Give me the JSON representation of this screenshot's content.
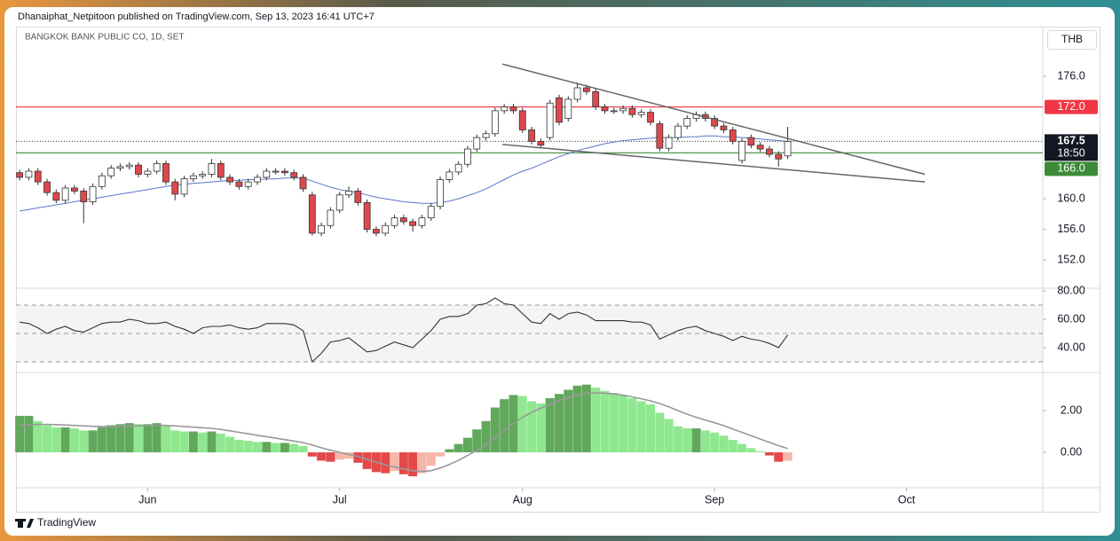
{
  "header": {
    "publisher": "Dhanaiphat_Netpitoon published on TradingView.com, Sep 13, 2023 16:41 UTC+7",
    "footer": "TradingView"
  },
  "chart_data": [
    {
      "type": "candlestick",
      "title": "BANGKOK BANK PUBLIC CO, 1D, SET",
      "currency": "THB",
      "xlim": [
        -0.4,
        111.9
      ],
      "xticks": [
        {
          "value": 14,
          "label": "Jun"
        },
        {
          "value": 35,
          "label": "Jul"
        },
        {
          "value": 55,
          "label": "Aug"
        },
        {
          "value": 76,
          "label": "Sep"
        },
        {
          "value": 97,
          "label": "Oct"
        }
      ],
      "ylim": [
        148.3,
        182.5
      ],
      "yticks": [
        {
          "value": 176,
          "label": "176.0"
        },
        {
          "value": 160,
          "label": "160.0"
        },
        {
          "value": 156,
          "label": "156.0"
        },
        {
          "value": 152,
          "label": "152.0"
        }
      ],
      "up_color": "#ffffff",
      "down_color": "#e0474c",
      "open": [
        163.4,
        162.8,
        163.6,
        162.2,
        160.8,
        159.8,
        161.4,
        161.0,
        159.6,
        161.6,
        163.0,
        164.0,
        164.2,
        164.4,
        163.2,
        163.6,
        164.6,
        162.2,
        160.6,
        162.6,
        163.0,
        163.2,
        164.6,
        162.8,
        162.2,
        161.6,
        162.2,
        162.8,
        163.6,
        163.6,
        163.4,
        162.8,
        160.5,
        155.5,
        156.5,
        158.5,
        160.5,
        161.0,
        159.5,
        156.0,
        155.5,
        156.5,
        157.5,
        157.0,
        156.5,
        157.5,
        159.0,
        162.5,
        163.5,
        164.5,
        166.5,
        168.0,
        168.5,
        171.5,
        172.0,
        171.5,
        169.0,
        167.5,
        168.0,
        173.2,
        170.5,
        173.0,
        174.5,
        174.0,
        172.0,
        171.5,
        171.5,
        171.8,
        171.0,
        171.3,
        169.8,
        166.6,
        168.0,
        169.5,
        170.5,
        171.0,
        170.5,
        169.5,
        169.0,
        165.0,
        168.0,
        167.0,
        166.5,
        165.8,
        165.6
      ],
      "high": [
        163.8,
        164.0,
        164.0,
        162.6,
        161.2,
        161.8,
        161.8,
        161.4,
        162.0,
        163.4,
        164.4,
        164.6,
        164.8,
        164.8,
        164.0,
        165.0,
        165.0,
        162.6,
        163.0,
        163.4,
        163.6,
        165.2,
        165.0,
        163.2,
        162.6,
        162.6,
        163.2,
        164.0,
        164.0,
        164.0,
        163.8,
        163.2,
        160.9,
        156.9,
        158.9,
        160.9,
        161.6,
        161.4,
        159.9,
        156.4,
        156.9,
        157.9,
        157.9,
        157.4,
        157.9,
        159.4,
        162.9,
        163.9,
        164.9,
        166.9,
        168.4,
        168.9,
        171.9,
        172.4,
        172.4,
        171.9,
        169.4,
        167.9,
        172.9,
        173.6,
        173.4,
        175.2,
        174.9,
        174.4,
        172.4,
        171.9,
        172.2,
        172.2,
        171.7,
        171.7,
        170.2,
        168.4,
        169.9,
        170.9,
        171.4,
        171.4,
        170.9,
        169.9,
        169.4,
        167.9,
        168.4,
        167.4,
        166.9,
        166.2,
        169.4
      ],
      "low": [
        162.4,
        162.4,
        161.8,
        160.4,
        159.4,
        159.4,
        160.6,
        156.8,
        159.2,
        161.2,
        162.6,
        163.6,
        163.8,
        162.8,
        162.8,
        163.2,
        161.8,
        159.8,
        160.2,
        162.2,
        162.6,
        162.8,
        162.4,
        161.8,
        161.2,
        161.2,
        161.8,
        162.4,
        163.2,
        163.0,
        162.4,
        160.9,
        155.2,
        155.1,
        156.1,
        158.1,
        160.1,
        159.1,
        155.6,
        155.1,
        155.1,
        156.1,
        156.6,
        155.7,
        156.1,
        157.1,
        158.6,
        162.1,
        163.1,
        164.1,
        166.1,
        167.6,
        168.1,
        171.1,
        171.1,
        168.6,
        167.1,
        166.6,
        167.6,
        169.6,
        170.1,
        172.6,
        173.6,
        171.6,
        171.1,
        171.1,
        171.1,
        170.6,
        170.6,
        169.6,
        166.2,
        166.2,
        167.6,
        169.1,
        170.1,
        170.1,
        169.1,
        168.6,
        167.1,
        164.6,
        166.6,
        166.1,
        165.4,
        164.2,
        165.2
      ],
      "close": [
        162.8,
        163.6,
        162.2,
        160.8,
        159.8,
        161.4,
        161.0,
        159.6,
        161.6,
        163.0,
        164.0,
        164.2,
        164.4,
        163.2,
        163.6,
        164.6,
        162.2,
        160.6,
        162.6,
        163.0,
        163.2,
        164.6,
        162.8,
        162.2,
        161.6,
        162.2,
        162.8,
        163.6,
        163.6,
        163.4,
        162.8,
        161.3,
        155.5,
        156.5,
        158.5,
        160.5,
        161.0,
        159.5,
        156.0,
        155.5,
        156.5,
        157.5,
        157.0,
        156.5,
        157.5,
        159.0,
        162.5,
        163.5,
        164.5,
        166.5,
        168.0,
        168.5,
        171.5,
        172.0,
        171.5,
        169.0,
        167.5,
        167.0,
        172.5,
        170.0,
        173.0,
        174.5,
        174.0,
        172.0,
        171.5,
        171.5,
        171.8,
        171.0,
        171.3,
        170.0,
        166.6,
        168.0,
        169.5,
        170.5,
        171.0,
        170.5,
        169.5,
        169.0,
        167.5,
        167.5,
        167.0,
        166.5,
        165.8,
        165.2,
        167.5
      ],
      "ma": {
        "color": "#5b76c7",
        "values": [
          158.4,
          158.6,
          158.8,
          159.0,
          159.2,
          159.4,
          159.6,
          159.8,
          160.0,
          160.2,
          160.4,
          160.6,
          160.8,
          161.0,
          161.2,
          161.4,
          161.6,
          161.8,
          161.9,
          162.0,
          162.1,
          162.2,
          162.3,
          162.4,
          162.4,
          162.5,
          162.5,
          162.6,
          162.6,
          162.7,
          162.7,
          162.7,
          162.3,
          161.9,
          161.5,
          161.2,
          161.0,
          160.8,
          160.5,
          160.2,
          160.0,
          159.8,
          159.6,
          159.5,
          159.4,
          159.4,
          159.5,
          159.7,
          160.0,
          160.4,
          160.8,
          161.3,
          161.9,
          162.5,
          163.1,
          163.6,
          164.0,
          164.5,
          165.0,
          165.5,
          165.9,
          166.3,
          166.6,
          166.9,
          167.2,
          167.4,
          167.6,
          167.7,
          167.8,
          167.9,
          168.0,
          168.0,
          168.0,
          168.1,
          168.1,
          168.2,
          168.2,
          168.1,
          168.1,
          168.0,
          167.9,
          167.8,
          167.7,
          167.6,
          167.5
        ]
      },
      "hlines": [
        {
          "value": 172,
          "label": "172.0",
          "color": "#f23645"
        },
        {
          "value": 166,
          "label": "166.0",
          "color": "#3d8b37"
        }
      ],
      "last_price": {
        "value": 167.5,
        "label": "167.5",
        "countdown": "18:50"
      },
      "trendlines": [
        {
          "x": [
            52.8,
            99
          ],
          "y": [
            177.6,
            163.2
          ],
          "color": "#666666"
        },
        {
          "x": [
            52.8,
            99
          ],
          "y": [
            167.1,
            162.2
          ],
          "color": "#666666"
        }
      ]
    },
    {
      "type": "line",
      "ylim": [
        22.5,
        81.9
      ],
      "yticks": [
        {
          "value": 80,
          "label": "80.00"
        },
        {
          "value": 60,
          "label": "60.00"
        },
        {
          "value": 40,
          "label": "40.00"
        }
      ],
      "levels": [
        70,
        50,
        30
      ],
      "color": "#333333",
      "values": [
        58,
        57,
        54,
        50,
        53,
        55,
        52,
        51,
        54,
        57,
        58,
        58,
        60,
        59,
        57,
        57,
        58,
        55,
        53,
        50,
        54,
        55,
        55,
        56,
        54,
        53,
        54,
        57,
        57,
        57,
        56,
        52,
        30,
        36,
        44,
        45,
        47,
        42,
        37,
        38,
        41,
        44,
        42,
        40,
        46,
        52,
        60,
        62,
        62,
        64,
        70,
        71,
        75,
        71,
        70,
        64,
        58,
        57,
        64,
        60,
        64,
        65,
        63,
        59,
        59,
        59,
        59,
        58,
        58,
        56,
        46,
        49,
        52,
        54,
        55,
        52,
        50,
        48,
        45,
        48,
        46,
        45,
        43,
        40,
        49
      ]
    },
    {
      "type": "bar",
      "ylim": [
        -1.7,
        3.83
      ],
      "yticks": [
        {
          "value": 2,
          "label": "2.00"
        },
        {
          "value": 0,
          "label": "0.00"
        }
      ],
      "colors": {
        "up_rising": "#62a85c",
        "up_falling": "#8fe88f",
        "down_falling": "#e54848",
        "down_rising": "#f5b7aa"
      },
      "values": [
        1.75,
        1.75,
        1.5,
        1.3,
        1.2,
        1.2,
        1.15,
        1.05,
        1.05,
        1.2,
        1.3,
        1.35,
        1.4,
        1.35,
        1.35,
        1.4,
        1.3,
        1.05,
        1.0,
        1.0,
        0.95,
        1.0,
        0.9,
        0.75,
        0.6,
        0.55,
        0.5,
        0.5,
        0.45,
        0.45,
        0.4,
        0.3,
        -0.2,
        -0.4,
        -0.45,
        -0.35,
        -0.3,
        -0.5,
        -0.8,
        -0.95,
        -1.0,
        -0.9,
        -1.05,
        -1.15,
        -1.0,
        -0.65,
        -0.2,
        0.15,
        0.4,
        0.7,
        1.1,
        1.5,
        2.15,
        2.55,
        2.75,
        2.7,
        2.45,
        2.35,
        2.6,
        2.8,
        3.0,
        3.2,
        3.25,
        3.1,
        2.95,
        2.85,
        2.75,
        2.6,
        2.45,
        2.3,
        1.9,
        1.6,
        1.25,
        1.15,
        1.15,
        1.05,
        0.95,
        0.8,
        0.6,
        0.4,
        0.2,
        0.05,
        -0.15,
        -0.45,
        -0.4
      ],
      "signal": {
        "color": "#999999",
        "values": [
          1.3,
          1.32,
          1.34,
          1.34,
          1.33,
          1.31,
          1.29,
          1.27,
          1.25,
          1.24,
          1.24,
          1.25,
          1.26,
          1.27,
          1.28,
          1.29,
          1.29,
          1.27,
          1.24,
          1.21,
          1.18,
          1.15,
          1.1,
          1.03,
          0.96,
          0.89,
          0.82,
          0.75,
          0.68,
          0.61,
          0.54,
          0.47,
          0.35,
          0.22,
          0.1,
          0.0,
          -0.1,
          -0.2,
          -0.33,
          -0.47,
          -0.6,
          -0.7,
          -0.8,
          -0.88,
          -0.92,
          -0.88,
          -0.75,
          -0.58,
          -0.38,
          -0.15,
          0.1,
          0.38,
          0.7,
          1.05,
          1.38,
          1.68,
          1.92,
          2.12,
          2.3,
          2.48,
          2.62,
          2.74,
          2.82,
          2.85,
          2.84,
          2.8,
          2.74,
          2.66,
          2.57,
          2.47,
          2.34,
          2.18,
          2.0,
          1.83,
          1.68,
          1.55,
          1.42,
          1.28,
          1.12,
          0.96,
          0.8,
          0.64,
          0.48,
          0.32,
          0.18
        ]
      }
    }
  ]
}
